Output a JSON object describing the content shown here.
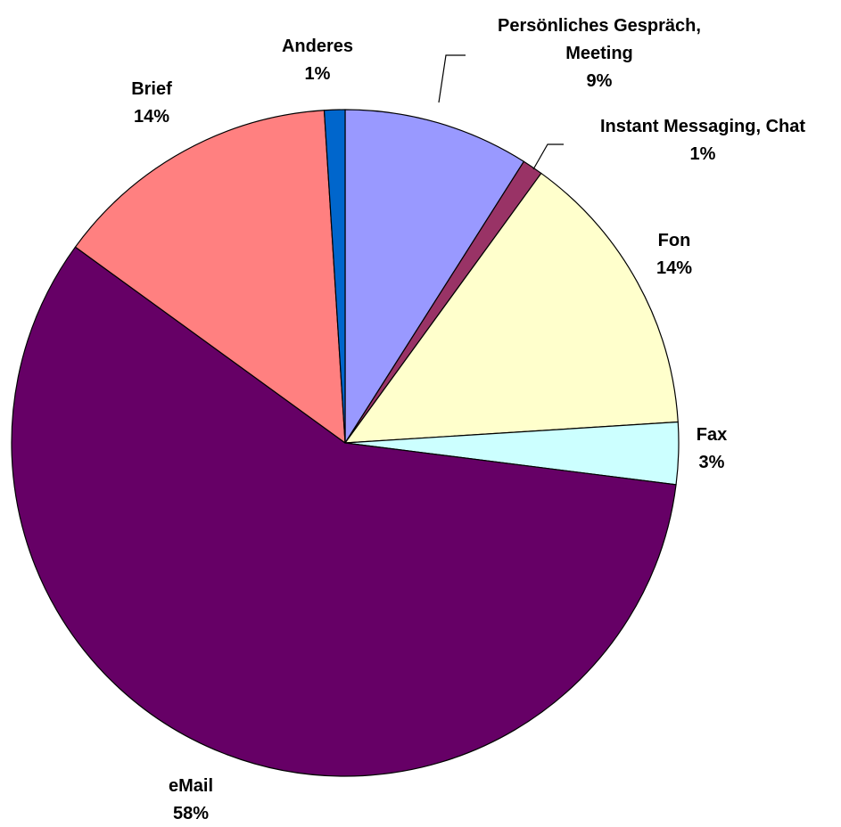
{
  "chart_data": {
    "type": "pie",
    "title": "",
    "start": "top",
    "direction": "clockwise",
    "slices": [
      {
        "name": "Persönliches Gespräch, Meeting",
        "name_lines": [
          "Persönliches Gespräch,",
          "Meeting"
        ],
        "value": 9,
        "label": "9%",
        "color": "#9999FF"
      },
      {
        "name": "Instant Messaging, Chat",
        "name_lines": [
          "Instant Messaging, Chat"
        ],
        "value": 1,
        "label": "1%",
        "color": "#993366"
      },
      {
        "name": "Fon",
        "name_lines": [
          "Fon"
        ],
        "value": 14,
        "label": "14%",
        "color": "#FFFFCC"
      },
      {
        "name": "Fax",
        "name_lines": [
          "Fax"
        ],
        "value": 3,
        "label": "3%",
        "color": "#CCFFFF"
      },
      {
        "name": "eMail",
        "name_lines": [
          "eMail"
        ],
        "value": 58,
        "label": "58%",
        "color": "#660066"
      },
      {
        "name": "Brief",
        "name_lines": [
          "Brief"
        ],
        "value": 14,
        "label": "14%",
        "color": "#FF8080"
      },
      {
        "name": "Anderes",
        "name_lines": [
          "Anderes"
        ],
        "value": 1,
        "label": "1%",
        "color": "#0066CC"
      }
    ]
  }
}
